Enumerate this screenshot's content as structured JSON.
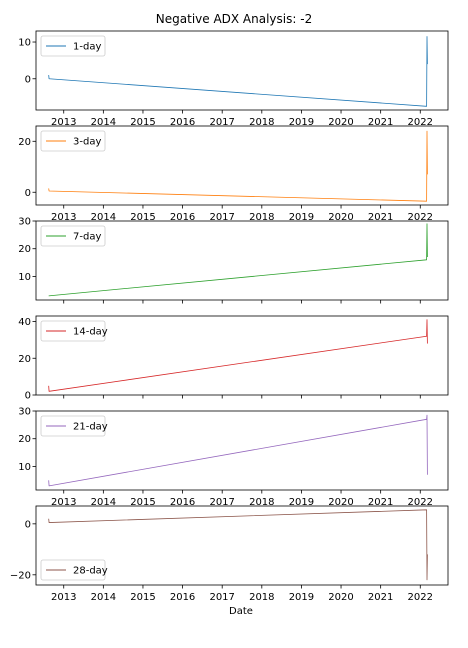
{
  "figure": {
    "title": "Negative ADX Analysis: -2",
    "xlabel": "Date"
  },
  "chart_data": [
    {
      "type": "line",
      "series": [
        {
          "name": "1-day",
          "color": "#1f77b4",
          "points": [
            [
              2012.62,
              1.0
            ],
            [
              2012.63,
              0.0
            ],
            [
              2022.16,
              -7.5
            ],
            [
              2022.17,
              11.5
            ],
            [
              2022.18,
              4.0
            ]
          ]
        }
      ],
      "xlim": [
        2012.3,
        2022.7
      ],
      "ylim": [
        -8.5,
        13
      ],
      "yticks": [
        0,
        10
      ],
      "ytick_labels": [
        "0",
        "10"
      ],
      "xticks": [
        2013,
        2014,
        2015,
        2016,
        2017,
        2018,
        2019,
        2020,
        2021,
        2022
      ],
      "xtick_labels": [
        "2013",
        "2014",
        "2015",
        "2016",
        "2017",
        "2018",
        "2019",
        "2020",
        "2021",
        "2022"
      ],
      "show_xtick_labels": true,
      "legend": "upper-left"
    },
    {
      "type": "line",
      "series": [
        {
          "name": "3-day",
          "color": "#ff7f0e",
          "points": [
            [
              2012.62,
              1.5
            ],
            [
              2012.63,
              0.5
            ],
            [
              2022.16,
              -3.5
            ],
            [
              2022.17,
              24.0
            ],
            [
              2022.18,
              7.0
            ]
          ]
        }
      ],
      "xlim": [
        2012.3,
        2022.7
      ],
      "ylim": [
        -5,
        26
      ],
      "yticks": [
        0,
        20
      ],
      "ytick_labels": [
        "0",
        "20"
      ],
      "xticks": [
        2013,
        2014,
        2015,
        2016,
        2017,
        2018,
        2019,
        2020,
        2021,
        2022
      ],
      "xtick_labels": [
        "2013",
        "2014",
        "2015",
        "2016",
        "2017",
        "2018",
        "2019",
        "2020",
        "2021",
        "2022"
      ],
      "show_xtick_labels": true,
      "legend": "upper-left"
    },
    {
      "type": "line",
      "series": [
        {
          "name": "7-day",
          "color": "#2ca02c",
          "points": [
            [
              2012.62,
              3.0
            ],
            [
              2022.16,
              16.0
            ],
            [
              2022.17,
              29.0
            ],
            [
              2022.18,
              17.0
            ]
          ]
        }
      ],
      "xlim": [
        2012.3,
        2022.7
      ],
      "ylim": [
        1.5,
        30
      ],
      "yticks": [
        10,
        20,
        30
      ],
      "ytick_labels": [
        "10",
        "20",
        "30"
      ],
      "xticks": [
        2013,
        2014,
        2015,
        2016,
        2017,
        2018,
        2019,
        2020,
        2021,
        2022
      ],
      "xtick_labels": [],
      "show_xtick_labels": false,
      "legend": "upper-left"
    },
    {
      "type": "line",
      "series": [
        {
          "name": "14-day",
          "color": "#d62728",
          "points": [
            [
              2012.62,
              5.0
            ],
            [
              2012.63,
              2.0
            ],
            [
              2022.16,
              32.0
            ],
            [
              2022.17,
              41.0
            ],
            [
              2022.18,
              28.0
            ]
          ]
        }
      ],
      "xlim": [
        2012.3,
        2022.7
      ],
      "ylim": [
        0,
        43
      ],
      "yticks": [
        0,
        20,
        40
      ],
      "ytick_labels": [
        "0",
        "20",
        "40"
      ],
      "xticks": [
        2013,
        2014,
        2015,
        2016,
        2017,
        2018,
        2019,
        2020,
        2021,
        2022
      ],
      "xtick_labels": [],
      "show_xtick_labels": false,
      "legend": "upper-left"
    },
    {
      "type": "line",
      "series": [
        {
          "name": "21-day",
          "color": "#9467bd",
          "points": [
            [
              2012.62,
              5.0
            ],
            [
              2012.63,
              3.0
            ],
            [
              2022.16,
              27.0
            ],
            [
              2022.17,
              28.5
            ],
            [
              2022.18,
              7.0
            ]
          ]
        }
      ],
      "xlim": [
        2012.3,
        2022.7
      ],
      "ylim": [
        1.5,
        30
      ],
      "yticks": [
        10,
        20,
        30
      ],
      "ytick_labels": [
        "10",
        "20",
        "30"
      ],
      "xticks": [
        2013,
        2014,
        2015,
        2016,
        2017,
        2018,
        2019,
        2020,
        2021,
        2022
      ],
      "xtick_labels": [
        "2013",
        "2014",
        "2015",
        "2016",
        "2017",
        "2018",
        "2019",
        "2020",
        "2021",
        "2022"
      ],
      "show_xtick_labels": true,
      "legend": "upper-left"
    },
    {
      "type": "line",
      "series": [
        {
          "name": "28-day",
          "color": "#8c564b",
          "points": [
            [
              2012.62,
              2.0
            ],
            [
              2012.63,
              0.5
            ],
            [
              2022.16,
              5.5
            ],
            [
              2022.17,
              -22.0
            ],
            [
              2022.18,
              -12.0
            ]
          ]
        }
      ],
      "xlim": [
        2012.3,
        2022.7
      ],
      "ylim": [
        -24,
        7
      ],
      "yticks": [
        -20,
        0
      ],
      "ytick_labels": [
        "−20",
        "0"
      ],
      "xticks": [
        2013,
        2014,
        2015,
        2016,
        2017,
        2018,
        2019,
        2020,
        2021,
        2022
      ],
      "xtick_labels": [
        "2013",
        "2014",
        "2015",
        "2016",
        "2017",
        "2018",
        "2019",
        "2020",
        "2021",
        "2022"
      ],
      "show_xtick_labels": true,
      "legend": "lower-left"
    }
  ]
}
